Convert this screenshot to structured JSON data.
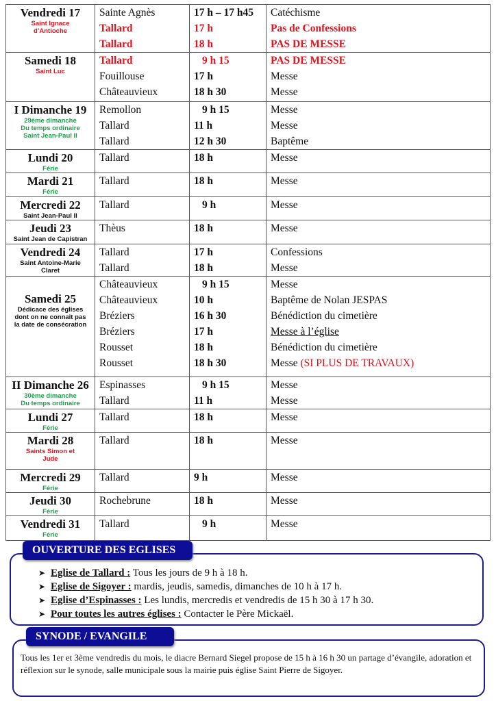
{
  "days": [
    {
      "name": "Vendredi 17",
      "note": [
        "Saint Ignace",
        "d’Antioche"
      ],
      "note_color": "#e0141e",
      "entries": [
        {
          "place": "Sainte Agnès",
          "time": "17 h – 17 h45",
          "event": "Catéchisme"
        },
        {
          "place": "Tallard",
          "time": "17 h",
          "event": "Pas de Confessions",
          "red": true
        },
        {
          "place": "Tallard",
          "time": "18 h",
          "event": "PAS DE MESSE",
          "red": true
        }
      ]
    },
    {
      "name": "Samedi 18",
      "note": [
        "Saint Luc"
      ],
      "note_color": "#e0141e",
      "entries": [
        {
          "place": "Tallard",
          "time": "9 h 15",
          "event": "PAS DE MESSE",
          "red": true,
          "pad": true
        },
        {
          "place": "Fouillouse",
          "time": "17 h",
          "event": "Messe"
        },
        {
          "place": "Châteauvieux",
          "time": "18 h 30",
          "event": "Messe"
        }
      ]
    },
    {
      "name": "I Dimanche 19",
      "note": [
        "29ème dimanche",
        "Du temps ordinaire",
        "Saint Jean-Paul II"
      ],
      "note_color": "#1e9e4a",
      "entries": [
        {
          "place": "Remollon",
          "time": "9 h 15",
          "event": "Messe",
          "pad": true
        },
        {
          "place": "Tallard",
          "time": "11 h",
          "event": "Messe"
        },
        {
          "place": "Tallard",
          "time": "12 h 30",
          "event": "Baptême"
        }
      ]
    },
    {
      "name": "Lundi 20",
      "note": [
        "Férie"
      ],
      "note_color": "#1e9e4a",
      "entries": [
        {
          "place": "Tallard",
          "time": "18 h",
          "event": "Messe"
        }
      ]
    },
    {
      "name": "Mardi 21",
      "note": [
        "Férie"
      ],
      "note_color": "#1e9e4a",
      "entries": [
        {
          "place": "Tallard",
          "time": "18 h",
          "event": "Messe"
        }
      ]
    },
    {
      "name": "Mercredi 22",
      "note": [
        "Saint Jean-Paul II"
      ],
      "note_color": "#111111",
      "entries": [
        {
          "place": "Tallard",
          "time": "9 h",
          "event": "Messe",
          "pad": true
        }
      ]
    },
    {
      "name": "Jeudi 23",
      "note": [
        "Saint Jean de Capistran"
      ],
      "note_color": "#111111",
      "entries": [
        {
          "place": "Thèus",
          "time": "18 h",
          "event": "Messe"
        }
      ]
    },
    {
      "name": "Vendredi 24",
      "note": [
        "Saint Antoine-Marie",
        "Claret"
      ],
      "note_color": "#111111",
      "entries": [
        {
          "place": "Tallard",
          "time": "17 h",
          "event": "Confessions"
        },
        {
          "place": "Tallard",
          "time": "18 h",
          "event": "Messe"
        }
      ]
    },
    {
      "name": "Samedi 25",
      "note": [
        "Dédicace des églises",
        "dont on ne connaît pas",
        "la date de consécration"
      ],
      "note_color": "#111111",
      "entries": [
        {
          "place": "Châteauvieux",
          "time": "9 h 15",
          "event": "Messe",
          "pad": true
        },
        {
          "place": "Châteauvieux",
          "time": "10 h",
          "event": "Baptême de Nolan JESPAS"
        },
        {
          "place": "Bréziers",
          "time": "16 h 30",
          "event": "Bénédiction du cimetière"
        },
        {
          "place": "Bréziers",
          "time": "17 h",
          "event": "Messe à l’église",
          "underline": true
        },
        {
          "place": "Rousset",
          "time": "18 h",
          "event": "Bénédiction du cimetière"
        },
        {
          "place": "Rousset",
          "time": "18 h 30",
          "event": "Messe",
          "extra": "(SI PLUS DE TRAVAUX)"
        }
      ]
    },
    {
      "name": "II Dimanche 26",
      "note": [
        "30ème dimanche",
        "Du temps ordinaire"
      ],
      "note_color": "#1e9e4a",
      "entries": [
        {
          "place": "Espinasses",
          "time": "9 h 15",
          "event": "Messe",
          "pad": true
        },
        {
          "place": "Tallard",
          "time": "11 h",
          "event": "Messe"
        }
      ]
    },
    {
      "name": "Lundi 27",
      "note": [
        "Férie"
      ],
      "note_color": "#1e9e4a",
      "entries": [
        {
          "place": "Tallard",
          "time": "18 h",
          "event": "Messe"
        }
      ]
    },
    {
      "name": "Mardi 28",
      "note": [
        "Saints Simon et",
        "Jude"
      ],
      "note_color": "#e0141e",
      "entries": [
        {
          "place": "Tallard",
          "time": "18 h",
          "event": "Messe"
        }
      ]
    },
    {
      "name": "Mercredi 29",
      "note": [
        "Férie"
      ],
      "note_color": "#1e9e4a",
      "entries": [
        {
          "place": "Tallard",
          "time": "9 h",
          "event": "Messe"
        }
      ]
    },
    {
      "name": "Jeudi 30",
      "note": [
        "Férie"
      ],
      "note_color": "#1e9e4a",
      "entries": [
        {
          "place": "Rochebrune",
          "time": "18 h",
          "event": "Messe"
        }
      ]
    },
    {
      "name": "Vendredi 31",
      "note": [
        "Férie"
      ],
      "note_color": "#1e9e4a",
      "entries": [
        {
          "place": "Tallard",
          "time": "9 h",
          "event": "Messe",
          "pad": true
        }
      ]
    }
  ],
  "ouverture": {
    "title": "OUVERTURE DES EGLISES",
    "items": [
      {
        "label": "Eglise de Tallard :",
        "text": " Tous les jours de 9 h à 18 h."
      },
      {
        "label": "Eglise de Sigoyer :",
        "text": " mardis, jeudis, samedis, dimanches de 10 h à 17 h."
      },
      {
        "label": "Eglise d’Espinasses :",
        "text": " Les lundis, mercredis et vendredis de 15 h 30 à 17 h 30."
      },
      {
        "label": "Pour toutes les autres églises :",
        "text": " Contacter le Père Mickaël."
      }
    ]
  },
  "synode": {
    "title": "SYNODE / EVANGILE",
    "text": "Tous les 1er et 3ème vendredis du mois, le diacre Bernard Siegel propose de 15 h à 16 h 30 un partage d’évangile, adoration et réflexion sur le synode, salle municipale sous la mairie puis église Saint Pierre de Sigoyer."
  },
  "colors": {
    "navy": "#0d0d96",
    "red": "#e0141e",
    "green": "#1e9e4a"
  }
}
